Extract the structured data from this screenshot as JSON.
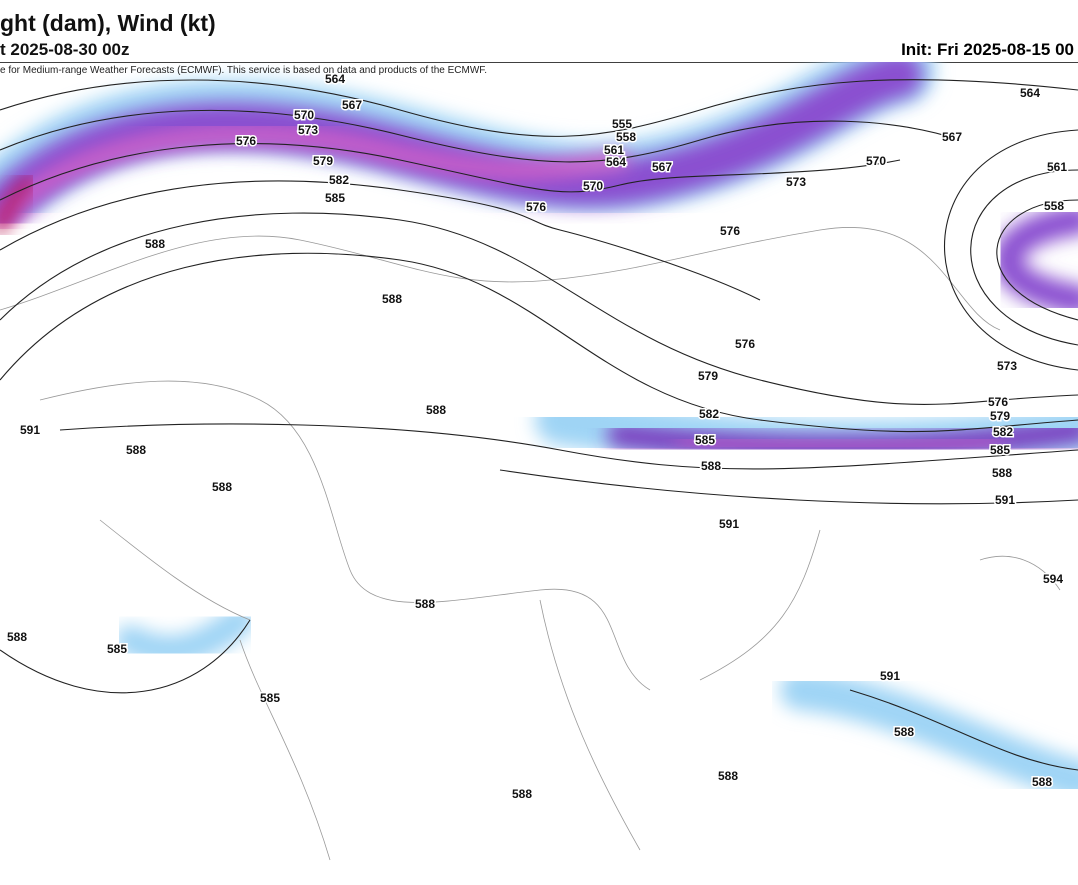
{
  "header": {
    "title": "ght (dam), Wind (kt)",
    "valid": "t 2025-08-30 00z",
    "init": "Init: Fri 2025-08-15 00",
    "attribution": "e for Medium-range Weather Forecasts (ECMWF). This service is based on data and products of the ECMWF."
  },
  "contour_labels": [
    564,
    567,
    570,
    573,
    576,
    579,
    582,
    585,
    555,
    558,
    561,
    564,
    567,
    570,
    576,
    573,
    570,
    567,
    564,
    561,
    558,
    588,
    588,
    576,
    576,
    579,
    573,
    588,
    582,
    585,
    588,
    576,
    579,
    582,
    585,
    588,
    591,
    591,
    588,
    588,
    591,
    594,
    588,
    588,
    585,
    585,
    591,
    588,
    588,
    588,
    588
  ]
}
